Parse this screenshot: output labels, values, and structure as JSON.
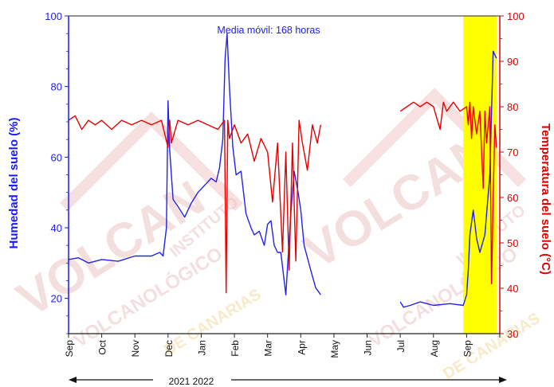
{
  "chart_data": {
    "type": "line",
    "title": "",
    "annotation": "Media móvil: 168 horas",
    "ylabel_left": "Humedad del suelo (%)",
    "ylabel_right": "Temperatura del suelo (°C)",
    "ylim_left": [
      10,
      100
    ],
    "ylim_right": [
      30,
      100
    ],
    "yticks_left": [
      "20",
      "40",
      "60",
      "80",
      "100"
    ],
    "yticks_right": [
      "30",
      "40",
      "50",
      "60",
      "70",
      "80",
      "90",
      "100"
    ],
    "x_month_labels": [
      "Sep",
      "Oct",
      "Nov",
      "Dec",
      "Jan",
      "Feb",
      "Mar",
      "Apr",
      "May",
      "Jun",
      "Jul",
      "Aug",
      "Sep"
    ],
    "x_range_months": [
      0,
      13
    ],
    "year_labels": "2021 2022",
    "highlight_span": [
      11.9,
      12.9
    ],
    "highlight_color": "#ffff00",
    "watermark_text": [
      "VOLCAN",
      "INSTITUTO",
      "VOLCANOLÓGICO",
      "DE CANARIAS"
    ],
    "colors": {
      "humidity": "#2222ee",
      "temperature": "#e60000",
      "left_axis": "#1a1aff",
      "right_axis": "#e00000"
    },
    "series": [
      {
        "axis": "left",
        "x": [
          0,
          0.3,
          0.6,
          1,
          1.5,
          2,
          2.5,
          2.75,
          2.85,
          2.95,
          3.0,
          3.05,
          3.15,
          3.3,
          3.5,
          3.7,
          3.9,
          4.1,
          4.3,
          4.45,
          4.55,
          4.65,
          4.72,
          4.78,
          4.85,
          4.95,
          5.05,
          5.2,
          5.35,
          5.5,
          5.6,
          5.75,
          5.9,
          6.0,
          6.1,
          6.2,
          6.3,
          6.4,
          6.55,
          6.7,
          6.8,
          6.92,
          7.0,
          7.1,
          7.3,
          7.45,
          7.6
        ],
        "values": [
          31,
          31.5,
          30,
          31,
          30.5,
          32,
          32,
          33,
          32,
          40,
          76,
          62,
          48,
          46,
          43,
          47,
          50,
          52,
          54,
          53,
          57,
          65,
          88,
          95,
          80,
          63,
          55,
          56,
          44,
          40,
          38,
          39,
          35,
          41,
          42,
          35,
          33,
          33,
          21,
          44,
          56,
          50,
          45,
          35,
          28,
          23,
          21
        ],
        "segment_break_after_x": 7.6
      },
      {
        "axis": "left",
        "x": [
          10,
          10.1,
          10.3,
          10.6,
          11.0,
          11.5,
          11.9,
          12.0,
          12.05,
          12.1,
          12.2,
          12.3,
          12.4,
          12.55,
          12.7,
          12.8,
          12.9
        ],
        "values": [
          19,
          17.5,
          18,
          19,
          18,
          18.5,
          18,
          21,
          28,
          38,
          45,
          37,
          33,
          38,
          55,
          90,
          88
        ]
      },
      {
        "axis": "right",
        "x": [
          0,
          0.2,
          0.4,
          0.6,
          0.8,
          1.0,
          1.3,
          1.6,
          1.9,
          2.2,
          2.5,
          2.8,
          3.0,
          3.05,
          3.1,
          3.3,
          3.6,
          3.9,
          4.2,
          4.5,
          4.7,
          4.75,
          4.8,
          4.85,
          5.0,
          5.2,
          5.4,
          5.6,
          5.8,
          6.0,
          6.15,
          6.3,
          6.45,
          6.55,
          6.65,
          6.75,
          6.85,
          6.95,
          7.05,
          7.2,
          7.35,
          7.5,
          7.6
        ],
        "values": [
          77,
          78,
          75,
          77,
          76,
          77,
          75,
          77,
          76,
          77,
          76,
          77,
          71,
          77,
          72,
          77,
          76,
          77,
          76,
          75,
          77,
          39,
          77,
          73,
          76,
          72,
          74,
          68,
          73,
          70,
          59,
          72,
          48,
          70,
          44,
          72,
          46,
          77,
          72,
          66,
          76,
          72,
          76
        ]
      },
      {
        "axis": "right",
        "x": [
          10,
          10.2,
          10.4,
          10.6,
          10.8,
          11.0,
          11.2,
          11.3,
          11.4,
          11.6,
          11.8,
          12.0,
          12.05,
          12.1,
          12.15,
          12.2,
          12.3,
          12.4,
          12.5,
          12.55,
          12.6,
          12.7,
          12.75,
          12.8,
          12.85,
          12.9
        ],
        "values": [
          79,
          80,
          81,
          80,
          81,
          80,
          75,
          81,
          79,
          81,
          79,
          80,
          76,
          81,
          73,
          80,
          74,
          79,
          62,
          79,
          72,
          80,
          41,
          60,
          76,
          71
        ]
      }
    ]
  }
}
